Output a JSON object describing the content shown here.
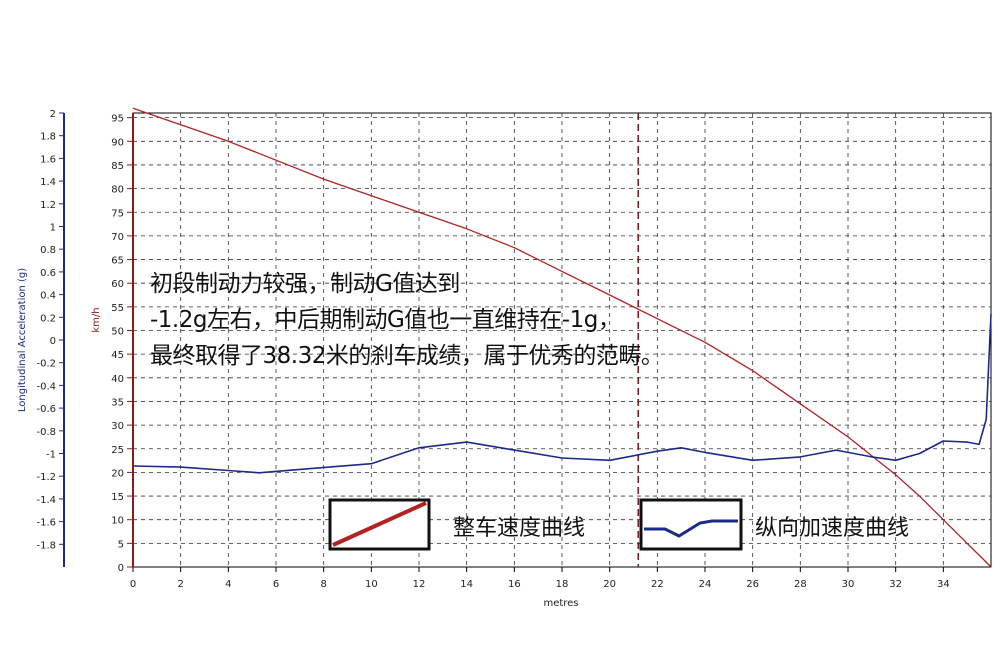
{
  "chart_data": {
    "type": "line",
    "annotation_lines": [
      "初段制动力较强，制动G值达到",
      "-1.2g左右，中后期制动G值也一直维持在-1g，",
      "最终取得了38.32米的刹车成绩，属于优秀的范畴。"
    ],
    "xlabel": "metres",
    "ylabel_left": "Longitudinal Acceleration (g)",
    "ylabel_speed": "km/h",
    "xlim": [
      0,
      36
    ],
    "x_ticks": [
      0,
      2,
      4,
      6,
      8,
      10,
      12,
      14,
      16,
      18,
      20,
      22,
      24,
      26,
      28,
      30,
      32,
      34
    ],
    "x_tick_labels": [
      "0",
      "2",
      "4",
      "6",
      "8",
      "10",
      "12",
      "14",
      "16",
      "18",
      "20",
      "22",
      "24",
      "26",
      "28",
      "30",
      "32",
      "34"
    ],
    "speed_axis": {
      "range": [
        0,
        97
      ],
      "ticks": [
        0,
        5,
        10,
        15,
        20,
        25,
        30,
        35,
        40,
        45,
        50,
        55,
        60,
        65,
        70,
        75,
        80,
        85,
        90,
        95
      ],
      "tick_labels": [
        "0",
        "5",
        "10",
        "15",
        "20",
        "25",
        "30",
        "35",
        "40",
        "45",
        "50",
        "55",
        "60",
        "65",
        "70",
        "75",
        "80",
        "85",
        "90",
        "95"
      ]
    },
    "accel_axis": {
      "range_top": 2,
      "ticks": [
        2,
        1.8,
        1.6,
        1.4,
        1.2,
        1,
        0.8,
        0.6,
        0.4,
        0.2,
        0,
        -0.2,
        -0.4,
        -0.6,
        -0.8,
        -1,
        -1.2,
        -1.4,
        -1.6,
        -1.8
      ],
      "tick_labels": [
        "2",
        "1.8",
        "1.6",
        "1.4",
        "1.2",
        "1",
        "0.8",
        "0.6",
        "0.4",
        "0.2",
        "0",
        "-0.2",
        "-0.4",
        "-0.6",
        "-0.8",
        "-1",
        "-1.2",
        "-1.4",
        "-1.6",
        "-1.8"
      ]
    },
    "cursor_x": 21.2,
    "grid": true,
    "series": [
      {
        "name": "整车速度曲线",
        "axis": "speed",
        "color": "#b22222",
        "x": [
          0,
          2,
          4,
          6,
          8,
          10,
          12,
          14,
          16,
          18,
          20,
          22,
          24,
          26,
          28,
          30,
          32,
          33,
          34,
          35,
          35.6,
          36
        ],
        "y": [
          97,
          93.5,
          90,
          86,
          82,
          78.5,
          75,
          71.5,
          67.5,
          62.5,
          57.5,
          52.5,
          47.5,
          41.5,
          34.5,
          27.5,
          19.5,
          15,
          10,
          5,
          2,
          0
        ]
      },
      {
        "name": "纵向加速度曲线",
        "axis": "accel",
        "color": "#1c2a8a",
        "x": [
          0,
          2,
          4,
          5.3,
          7,
          10,
          12,
          14,
          16,
          18,
          20,
          22,
          23,
          24,
          26,
          28,
          29.5,
          31,
          32,
          33,
          34,
          35,
          35.5,
          35.8,
          36
        ],
        "y": [
          -1.11,
          -1.12,
          -1.15,
          -1.17,
          -1.14,
          -1.09,
          -0.95,
          -0.9,
          -0.97,
          -1.04,
          -1.06,
          -0.98,
          -0.95,
          -0.99,
          -1.06,
          -1.03,
          -0.97,
          -1.03,
          -1.06,
          -1.0,
          -0.89,
          -0.9,
          -0.92,
          -0.7,
          0.23
        ]
      }
    ],
    "legend": [
      {
        "label": "整车速度曲线"
      },
      {
        "label": "纵向加速度曲线"
      }
    ]
  }
}
